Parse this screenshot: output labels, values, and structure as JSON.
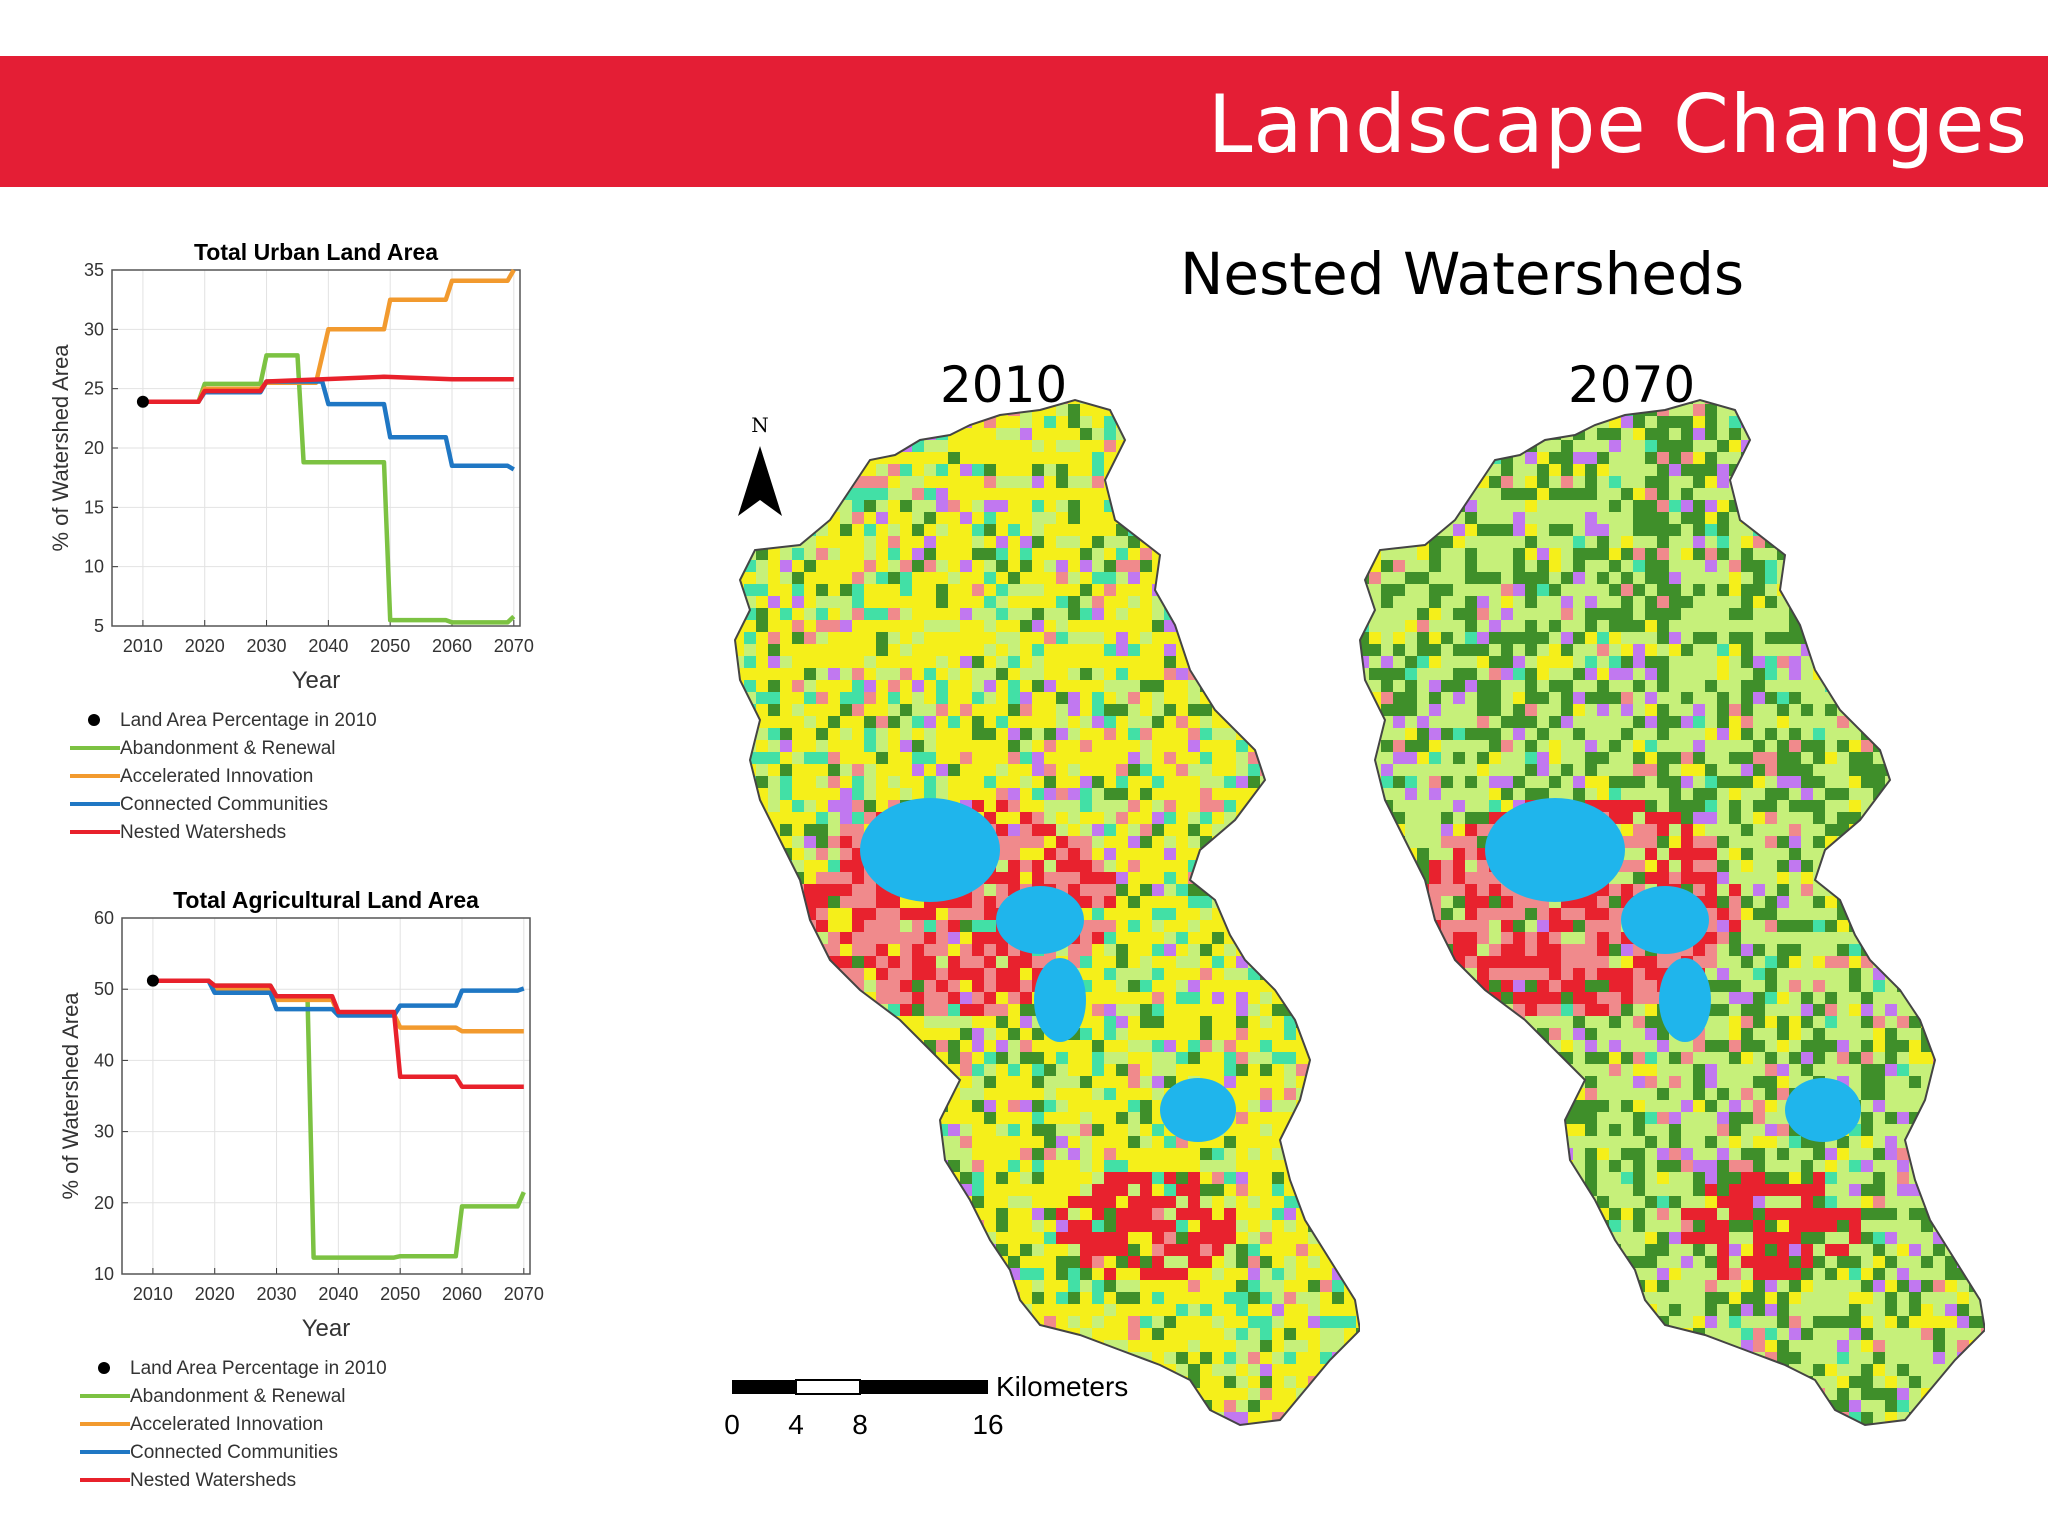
{
  "page": {
    "title": "Landscape Changes",
    "map_section_title": "Nested Watersheds",
    "map_years": [
      "2010",
      "2070"
    ],
    "north_label": "N",
    "scale": {
      "unit": "Kilometers",
      "ticks": [
        "0",
        "4",
        "8",
        "16"
      ]
    }
  },
  "colors": {
    "banner": "#e41e35",
    "abandonment": "#7cc242",
    "accelerated": "#f29a2e",
    "connected": "#1f77c4",
    "nested": "#e8212b",
    "map_yellow": "#f5ef1a",
    "map_lightgreen": "#c6f07a",
    "map_darkgreen": "#3f8f2a",
    "map_red": "#e8222e",
    "map_pink": "#f08a8c",
    "map_purple": "#c178f0",
    "map_water": "#1fb5ec",
    "map_cyan": "#42e0a6"
  },
  "legend_items": [
    {
      "label": "Land Area Percentage in 2010",
      "type": "dot",
      "color": "#000000"
    },
    {
      "label": "Abandonment & Renewal",
      "type": "line",
      "color": "#7cc242"
    },
    {
      "label": "Accelerated Innovation",
      "type": "line",
      "color": "#f29a2e"
    },
    {
      "label": "Connected Communities",
      "type": "line",
      "color": "#1f77c4"
    },
    {
      "label": "Nested Watersheds",
      "type": "line",
      "color": "#e8212b"
    }
  ],
  "chart_data": [
    {
      "type": "line",
      "title": "Total Urban Land Area",
      "xlabel": "Year",
      "ylabel": "% of Watershed Area",
      "xlim": [
        2005,
        2071
      ],
      "ylim": [
        5,
        35
      ],
      "xticks": [
        2010,
        2020,
        2030,
        2040,
        2050,
        2060,
        2070
      ],
      "yticks": [
        5,
        10,
        15,
        20,
        25,
        30,
        35
      ],
      "grid": true,
      "legend": "below",
      "baseline_point": {
        "name": "Land Area Percentage in 2010",
        "x": 2010,
        "y": 23.9
      },
      "series": [
        {
          "name": "Abandonment & Renewal",
          "color": "#7cc242",
          "points": [
            [
              2010,
              23.9
            ],
            [
              2019,
              23.9
            ],
            [
              2020,
              25.4
            ],
            [
              2029,
              25.4
            ],
            [
              2030,
              27.8
            ],
            [
              2035,
              27.8
            ],
            [
              2036,
              18.8
            ],
            [
              2049,
              18.8
            ],
            [
              2050,
              5.5
            ],
            [
              2059,
              5.5
            ],
            [
              2060,
              5.3
            ],
            [
              2069,
              5.3
            ],
            [
              2070,
              5.8
            ]
          ]
        },
        {
          "name": "Accelerated Innovation",
          "color": "#f29a2e",
          "points": [
            [
              2010,
              23.9
            ],
            [
              2019,
              23.9
            ],
            [
              2020,
              25.0
            ],
            [
              2029,
              25.0
            ],
            [
              2030,
              25.5
            ],
            [
              2038,
              25.5
            ],
            [
              2040,
              30.0
            ],
            [
              2049,
              30.0
            ],
            [
              2050,
              32.5
            ],
            [
              2059,
              32.5
            ],
            [
              2060,
              34.1
            ],
            [
              2069,
              34.1
            ],
            [
              2070,
              35.0
            ]
          ]
        },
        {
          "name": "Connected Communities",
          "color": "#1f77c4",
          "points": [
            [
              2010,
              23.9
            ],
            [
              2019,
              23.9
            ],
            [
              2020,
              24.7
            ],
            [
              2029,
              24.7
            ],
            [
              2030,
              25.6
            ],
            [
              2039,
              25.6
            ],
            [
              2040,
              23.7
            ],
            [
              2049,
              23.7
            ],
            [
              2050,
              20.9
            ],
            [
              2059,
              20.9
            ],
            [
              2060,
              18.5
            ],
            [
              2069,
              18.5
            ],
            [
              2070,
              18.2
            ]
          ]
        },
        {
          "name": "Nested Watersheds",
          "color": "#e8212b",
          "points": [
            [
              2010,
              23.9
            ],
            [
              2019,
              23.9
            ],
            [
              2020,
              24.8
            ],
            [
              2029,
              24.8
            ],
            [
              2030,
              25.6
            ],
            [
              2049,
              26.0
            ],
            [
              2060,
              25.8
            ],
            [
              2070,
              25.8
            ]
          ]
        }
      ]
    },
    {
      "type": "line",
      "title": "Total Agricultural Land Area",
      "xlabel": "Year",
      "ylabel": "% of Watershed Area",
      "xlim": [
        2005,
        2071
      ],
      "ylim": [
        10,
        60
      ],
      "xticks": [
        2010,
        2020,
        2030,
        2040,
        2050,
        2060,
        2070
      ],
      "yticks": [
        10,
        20,
        30,
        40,
        50,
        60
      ],
      "grid": true,
      "legend": "below",
      "baseline_point": {
        "name": "Land Area Percentage in 2010",
        "x": 2010,
        "y": 51.2
      },
      "series": [
        {
          "name": "Abandonment & Renewal",
          "color": "#7cc242",
          "points": [
            [
              2010,
              51.2
            ],
            [
              2019,
              51.2
            ],
            [
              2020,
              50.5
            ],
            [
              2029,
              50.5
            ],
            [
              2030,
              49.0
            ],
            [
              2035,
              49.0
            ],
            [
              2036,
              12.3
            ],
            [
              2049,
              12.3
            ],
            [
              2050,
              12.5
            ],
            [
              2059,
              12.5
            ],
            [
              2060,
              19.5
            ],
            [
              2069,
              19.5
            ],
            [
              2070,
              21.5
            ]
          ]
        },
        {
          "name": "Accelerated Innovation",
          "color": "#f29a2e",
          "points": [
            [
              2010,
              51.2
            ],
            [
              2019,
              51.2
            ],
            [
              2020,
              50.0
            ],
            [
              2029,
              50.0
            ],
            [
              2030,
              48.5
            ],
            [
              2039,
              48.5
            ],
            [
              2040,
              46.5
            ],
            [
              2049,
              46.5
            ],
            [
              2050,
              44.6
            ],
            [
              2059,
              44.6
            ],
            [
              2060,
              44.1
            ],
            [
              2070,
              44.1
            ]
          ]
        },
        {
          "name": "Connected Communities",
          "color": "#1f77c4",
          "points": [
            [
              2010,
              51.2
            ],
            [
              2019,
              51.2
            ],
            [
              2020,
              49.5
            ],
            [
              2029,
              49.5
            ],
            [
              2030,
              47.2
            ],
            [
              2039,
              47.2
            ],
            [
              2040,
              46.3
            ],
            [
              2049,
              46.3
            ],
            [
              2050,
              47.7
            ],
            [
              2059,
              47.7
            ],
            [
              2060,
              49.8
            ],
            [
              2069,
              49.8
            ],
            [
              2070,
              50.1
            ]
          ]
        },
        {
          "name": "Nested Watersheds",
          "color": "#e8212b",
          "points": [
            [
              2010,
              51.2
            ],
            [
              2019,
              51.2
            ],
            [
              2020,
              50.5
            ],
            [
              2029,
              50.5
            ],
            [
              2030,
              49.0
            ],
            [
              2039,
              49.0
            ],
            [
              2040,
              46.8
            ],
            [
              2049,
              46.8
            ],
            [
              2050,
              37.7
            ],
            [
              2059,
              37.7
            ],
            [
              2060,
              36.3
            ],
            [
              2070,
              36.3
            ]
          ]
        }
      ]
    }
  ]
}
